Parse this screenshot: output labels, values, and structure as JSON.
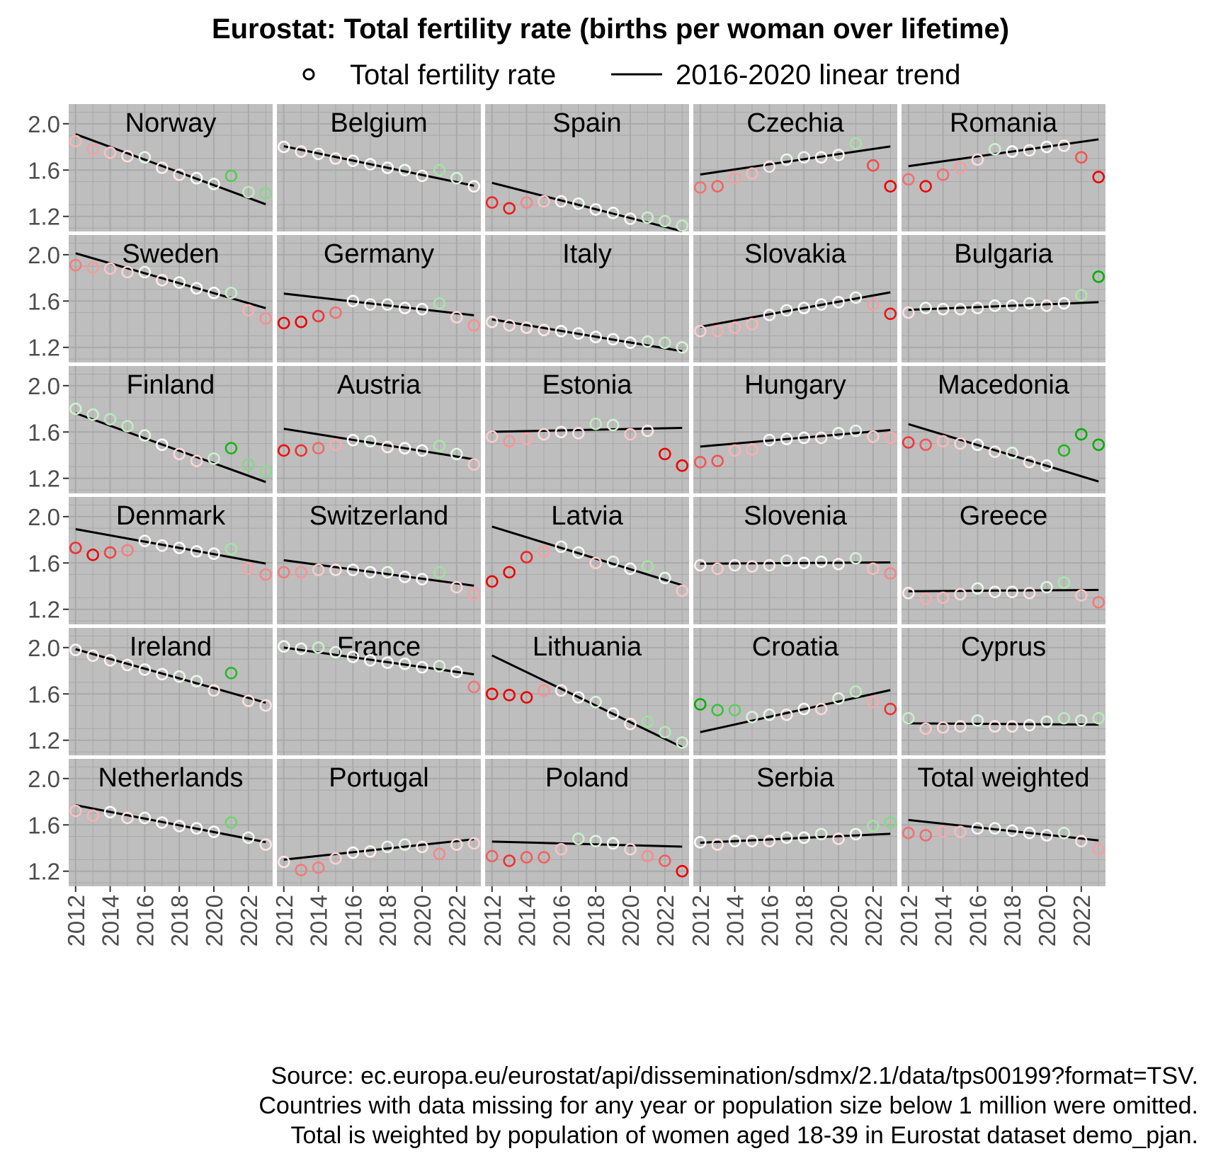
{
  "title": "Eurostat: Total fertility rate (births per woman over lifetime)",
  "legend": {
    "points_label": "Total fertility rate",
    "line_label": "2016-2020 linear trend"
  },
  "caption": [
    "Source: ec.europa.eu/eurostat/api/dissemination/sdmx/2.1/data/tps00199?format=TSV.",
    "Countries with data missing for any year or population size below 1 million were omitted.",
    "Total is weighted by population of women aged 18-39 in Eurostat dataset demo_pjan."
  ],
  "colors": {
    "panel_bg": "#bebebe",
    "grid": "#a9a9a9",
    "trend": "#000000",
    "on_trend": "#ffffff",
    "above_trend": "#00b000",
    "below_trend": "#ee0000"
  },
  "chart_data": {
    "type": "scatter",
    "facet_layout": "6 rows x 5 columns",
    "xlabel": "",
    "ylabel": "",
    "xlim": [
      2011.6,
      2023.4
    ],
    "ylim": [
      1.07,
      2.17
    ],
    "x_ticks": [
      2012,
      2014,
      2016,
      2018,
      2020,
      2022
    ],
    "y_ticks": [
      1.2,
      1.6,
      2.0
    ],
    "y_tick_labels": [
      "1.2",
      "1.6",
      "2.0"
    ],
    "grid": true,
    "legend_position": "top",
    "years": [
      2012,
      2013,
      2014,
      2015,
      2016,
      2017,
      2018,
      2019,
      2020,
      2021,
      2022,
      2023
    ],
    "panels": [
      {
        "name": "Norway",
        "values": [
          1.85,
          1.78,
          1.75,
          1.72,
          1.71,
          1.62,
          1.56,
          1.53,
          1.48,
          1.55,
          1.41,
          1.4
        ]
      },
      {
        "name": "Belgium",
        "values": [
          1.8,
          1.76,
          1.74,
          1.7,
          1.68,
          1.65,
          1.62,
          1.6,
          1.55,
          1.6,
          1.53,
          1.46
        ]
      },
      {
        "name": "Spain",
        "values": [
          1.32,
          1.27,
          1.32,
          1.33,
          1.33,
          1.31,
          1.26,
          1.23,
          1.18,
          1.19,
          1.16,
          1.12
        ]
      },
      {
        "name": "Czechia",
        "values": [
          1.45,
          1.46,
          1.53,
          1.57,
          1.63,
          1.69,
          1.71,
          1.71,
          1.73,
          1.83,
          1.64,
          1.46
        ]
      },
      {
        "name": "Romania",
        "values": [
          1.52,
          1.46,
          1.56,
          1.62,
          1.69,
          1.78,
          1.76,
          1.77,
          1.8,
          1.81,
          1.71,
          1.54
        ]
      },
      {
        "name": "Sweden",
        "values": [
          1.91,
          1.89,
          1.88,
          1.85,
          1.85,
          1.78,
          1.76,
          1.71,
          1.67,
          1.67,
          1.52,
          1.45
        ]
      },
      {
        "name": "Germany",
        "values": [
          1.41,
          1.42,
          1.47,
          1.5,
          1.6,
          1.57,
          1.57,
          1.54,
          1.53,
          1.58,
          1.46,
          1.39
        ]
      },
      {
        "name": "Italy",
        "values": [
          1.42,
          1.39,
          1.37,
          1.35,
          1.34,
          1.32,
          1.29,
          1.27,
          1.24,
          1.25,
          1.24,
          1.2
        ]
      },
      {
        "name": "Slovakia",
        "values": [
          1.34,
          1.34,
          1.37,
          1.4,
          1.48,
          1.52,
          1.54,
          1.57,
          1.59,
          1.63,
          1.57,
          1.49
        ]
      },
      {
        "name": "Bulgaria",
        "values": [
          1.5,
          1.54,
          1.53,
          1.53,
          1.54,
          1.56,
          1.56,
          1.58,
          1.56,
          1.58,
          1.65,
          1.81
        ]
      },
      {
        "name": "Finland",
        "values": [
          1.8,
          1.75,
          1.71,
          1.65,
          1.57,
          1.49,
          1.41,
          1.35,
          1.37,
          1.46,
          1.32,
          1.26
        ]
      },
      {
        "name": "Austria",
        "values": [
          1.44,
          1.44,
          1.46,
          1.49,
          1.53,
          1.52,
          1.47,
          1.46,
          1.44,
          1.48,
          1.41,
          1.32
        ]
      },
      {
        "name": "Estonia",
        "values": [
          1.56,
          1.52,
          1.54,
          1.58,
          1.6,
          1.59,
          1.67,
          1.66,
          1.58,
          1.61,
          1.41,
          1.31
        ]
      },
      {
        "name": "Hungary",
        "values": [
          1.34,
          1.35,
          1.44,
          1.45,
          1.53,
          1.54,
          1.55,
          1.55,
          1.59,
          1.61,
          1.56,
          1.55
        ]
      },
      {
        "name": "Macedonia",
        "values": [
          1.51,
          1.49,
          1.52,
          1.5,
          1.49,
          1.43,
          1.42,
          1.34,
          1.31,
          1.44,
          1.58,
          1.49
        ]
      },
      {
        "name": "Denmark",
        "values": [
          1.73,
          1.67,
          1.69,
          1.71,
          1.79,
          1.75,
          1.73,
          1.7,
          1.68,
          1.72,
          1.55,
          1.5
        ]
      },
      {
        "name": "Switzerland",
        "values": [
          1.52,
          1.52,
          1.54,
          1.54,
          1.54,
          1.52,
          1.52,
          1.48,
          1.46,
          1.52,
          1.39,
          1.33
        ]
      },
      {
        "name": "Latvia",
        "values": [
          1.44,
          1.52,
          1.65,
          1.7,
          1.74,
          1.69,
          1.6,
          1.61,
          1.55,
          1.57,
          1.47,
          1.36
        ]
      },
      {
        "name": "Slovenia",
        "values": [
          1.58,
          1.55,
          1.58,
          1.57,
          1.58,
          1.62,
          1.6,
          1.61,
          1.59,
          1.64,
          1.55,
          1.51
        ]
      },
      {
        "name": "Greece",
        "values": [
          1.34,
          1.29,
          1.3,
          1.33,
          1.38,
          1.35,
          1.35,
          1.34,
          1.39,
          1.43,
          1.32,
          1.26
        ]
      },
      {
        "name": "Ireland",
        "values": [
          1.98,
          1.93,
          1.89,
          1.85,
          1.81,
          1.77,
          1.75,
          1.71,
          1.63,
          1.78,
          1.54,
          1.5
        ]
      },
      {
        "name": "France",
        "values": [
          2.01,
          1.99,
          2.0,
          1.96,
          1.92,
          1.89,
          1.87,
          1.86,
          1.83,
          1.84,
          1.79,
          1.66
        ]
      },
      {
        "name": "Lithuania",
        "values": [
          1.6,
          1.59,
          1.57,
          1.63,
          1.63,
          1.57,
          1.53,
          1.43,
          1.34,
          1.36,
          1.27,
          1.18
        ]
      },
      {
        "name": "Croatia",
        "values": [
          1.51,
          1.46,
          1.46,
          1.4,
          1.42,
          1.42,
          1.47,
          1.47,
          1.56,
          1.62,
          1.53,
          1.47
        ]
      },
      {
        "name": "Cyprus",
        "values": [
          1.39,
          1.3,
          1.31,
          1.32,
          1.37,
          1.32,
          1.32,
          1.33,
          1.36,
          1.39,
          1.37,
          1.39
        ]
      },
      {
        "name": "Netherlands",
        "values": [
          1.72,
          1.68,
          1.71,
          1.66,
          1.66,
          1.62,
          1.59,
          1.57,
          1.54,
          1.62,
          1.49,
          1.43
        ]
      },
      {
        "name": "Portugal",
        "values": [
          1.28,
          1.21,
          1.23,
          1.31,
          1.36,
          1.37,
          1.41,
          1.43,
          1.41,
          1.35,
          1.43,
          1.44
        ]
      },
      {
        "name": "Poland",
        "values": [
          1.33,
          1.29,
          1.32,
          1.32,
          1.39,
          1.48,
          1.46,
          1.44,
          1.39,
          1.33,
          1.29,
          1.2
        ]
      },
      {
        "name": "Serbia",
        "values": [
          1.45,
          1.43,
          1.46,
          1.46,
          1.46,
          1.49,
          1.49,
          1.52,
          1.48,
          1.52,
          1.59,
          1.62
        ]
      },
      {
        "name": "Total weighted",
        "values": [
          1.53,
          1.51,
          1.54,
          1.54,
          1.57,
          1.57,
          1.55,
          1.53,
          1.51,
          1.53,
          1.46,
          1.39
        ]
      }
    ]
  }
}
